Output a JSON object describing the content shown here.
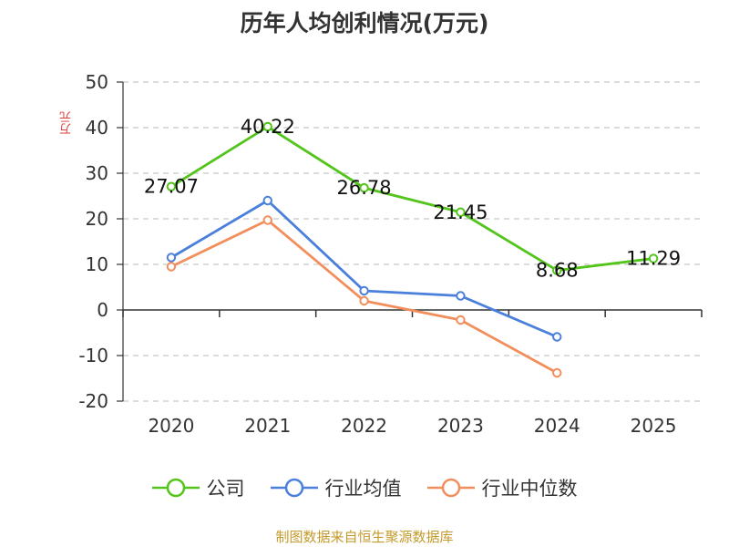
{
  "chart_data": {
    "type": "line",
    "title": "历年人均创利情况(万元)",
    "ylabel": "万元",
    "xlabel": "",
    "categories": [
      "2020",
      "2021",
      "2022",
      "2023",
      "2024",
      "2025"
    ],
    "ylim": [
      -20,
      50
    ],
    "yticks": [
      "50",
      "40",
      "30",
      "20",
      "10",
      "0",
      "-10",
      "-20"
    ],
    "grid": true,
    "legend_position": "bottom",
    "series": [
      {
        "name": "公司",
        "color": "#52c41a",
        "values": [
          27.07,
          40.22,
          26.78,
          21.45,
          8.68,
          11.29
        ],
        "labels": [
          "27.07",
          "40.22",
          "26.78",
          "21.45",
          "8.68",
          "11.29"
        ]
      },
      {
        "name": "行业均值",
        "color": "#4a7fdb",
        "values": [
          11.5,
          24.0,
          4.2,
          3.1,
          -5.9,
          null
        ]
      },
      {
        "name": "行业中位数",
        "color": "#f28e5c",
        "values": [
          9.5,
          19.7,
          2.0,
          -2.2,
          -13.8,
          null
        ]
      }
    ]
  },
  "footer": {
    "source": "制图数据来自恒生聚源数据库"
  }
}
